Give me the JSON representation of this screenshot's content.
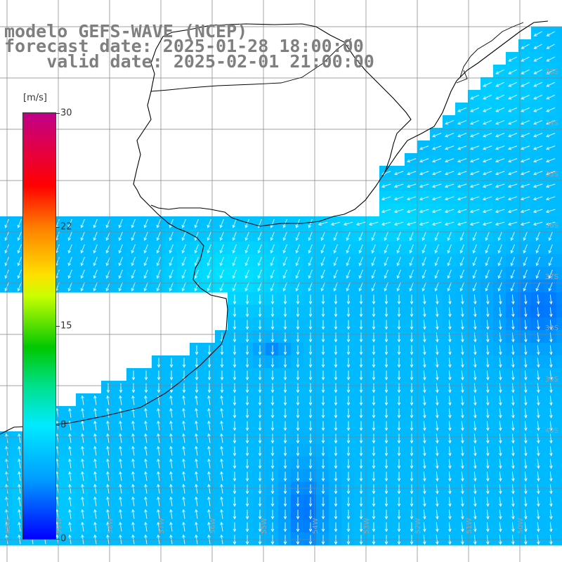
{
  "title": {
    "line1": "modelo GEFS-WAVE (NCEP)",
    "line2": "forecast date: 2025-01-28 18:00:00",
    "line3": "    valid date: 2025-02-01 21:00:00"
  },
  "colorbar": {
    "unit_label": "[m/s]",
    "ticks": [
      {
        "label": "30",
        "value": 30
      },
      {
        "label": "22",
        "value": 22
      },
      {
        "label": "15",
        "value": 15
      },
      {
        "label": "8",
        "value": 8
      },
      {
        "label": "0",
        "value": 0
      }
    ],
    "range": [
      0,
      30
    ],
    "colors": [
      "#0000ff",
      "#009dff",
      "#00eaff",
      "#00e08a",
      "#00c800",
      "#c8ff00",
      "#ffe000",
      "#ff8000",
      "#ff0000",
      "#dd0050",
      "#c00088"
    ]
  },
  "map_labels": {
    "lat": [
      "33S",
      "34S",
      "35S",
      "36S",
      "37S",
      "38S",
      "39S",
      "40S"
    ],
    "lon": [
      "60W",
      "59W",
      "58W",
      "57W",
      "56W",
      "55W",
      "54W",
      "53W",
      "52W",
      "51W",
      "50W"
    ]
  },
  "colors": {
    "land": "#ffffff",
    "grid": "#808080",
    "coastline": "#000000",
    "arrows": "#ffffff",
    "title": "#7f7f7f"
  }
}
